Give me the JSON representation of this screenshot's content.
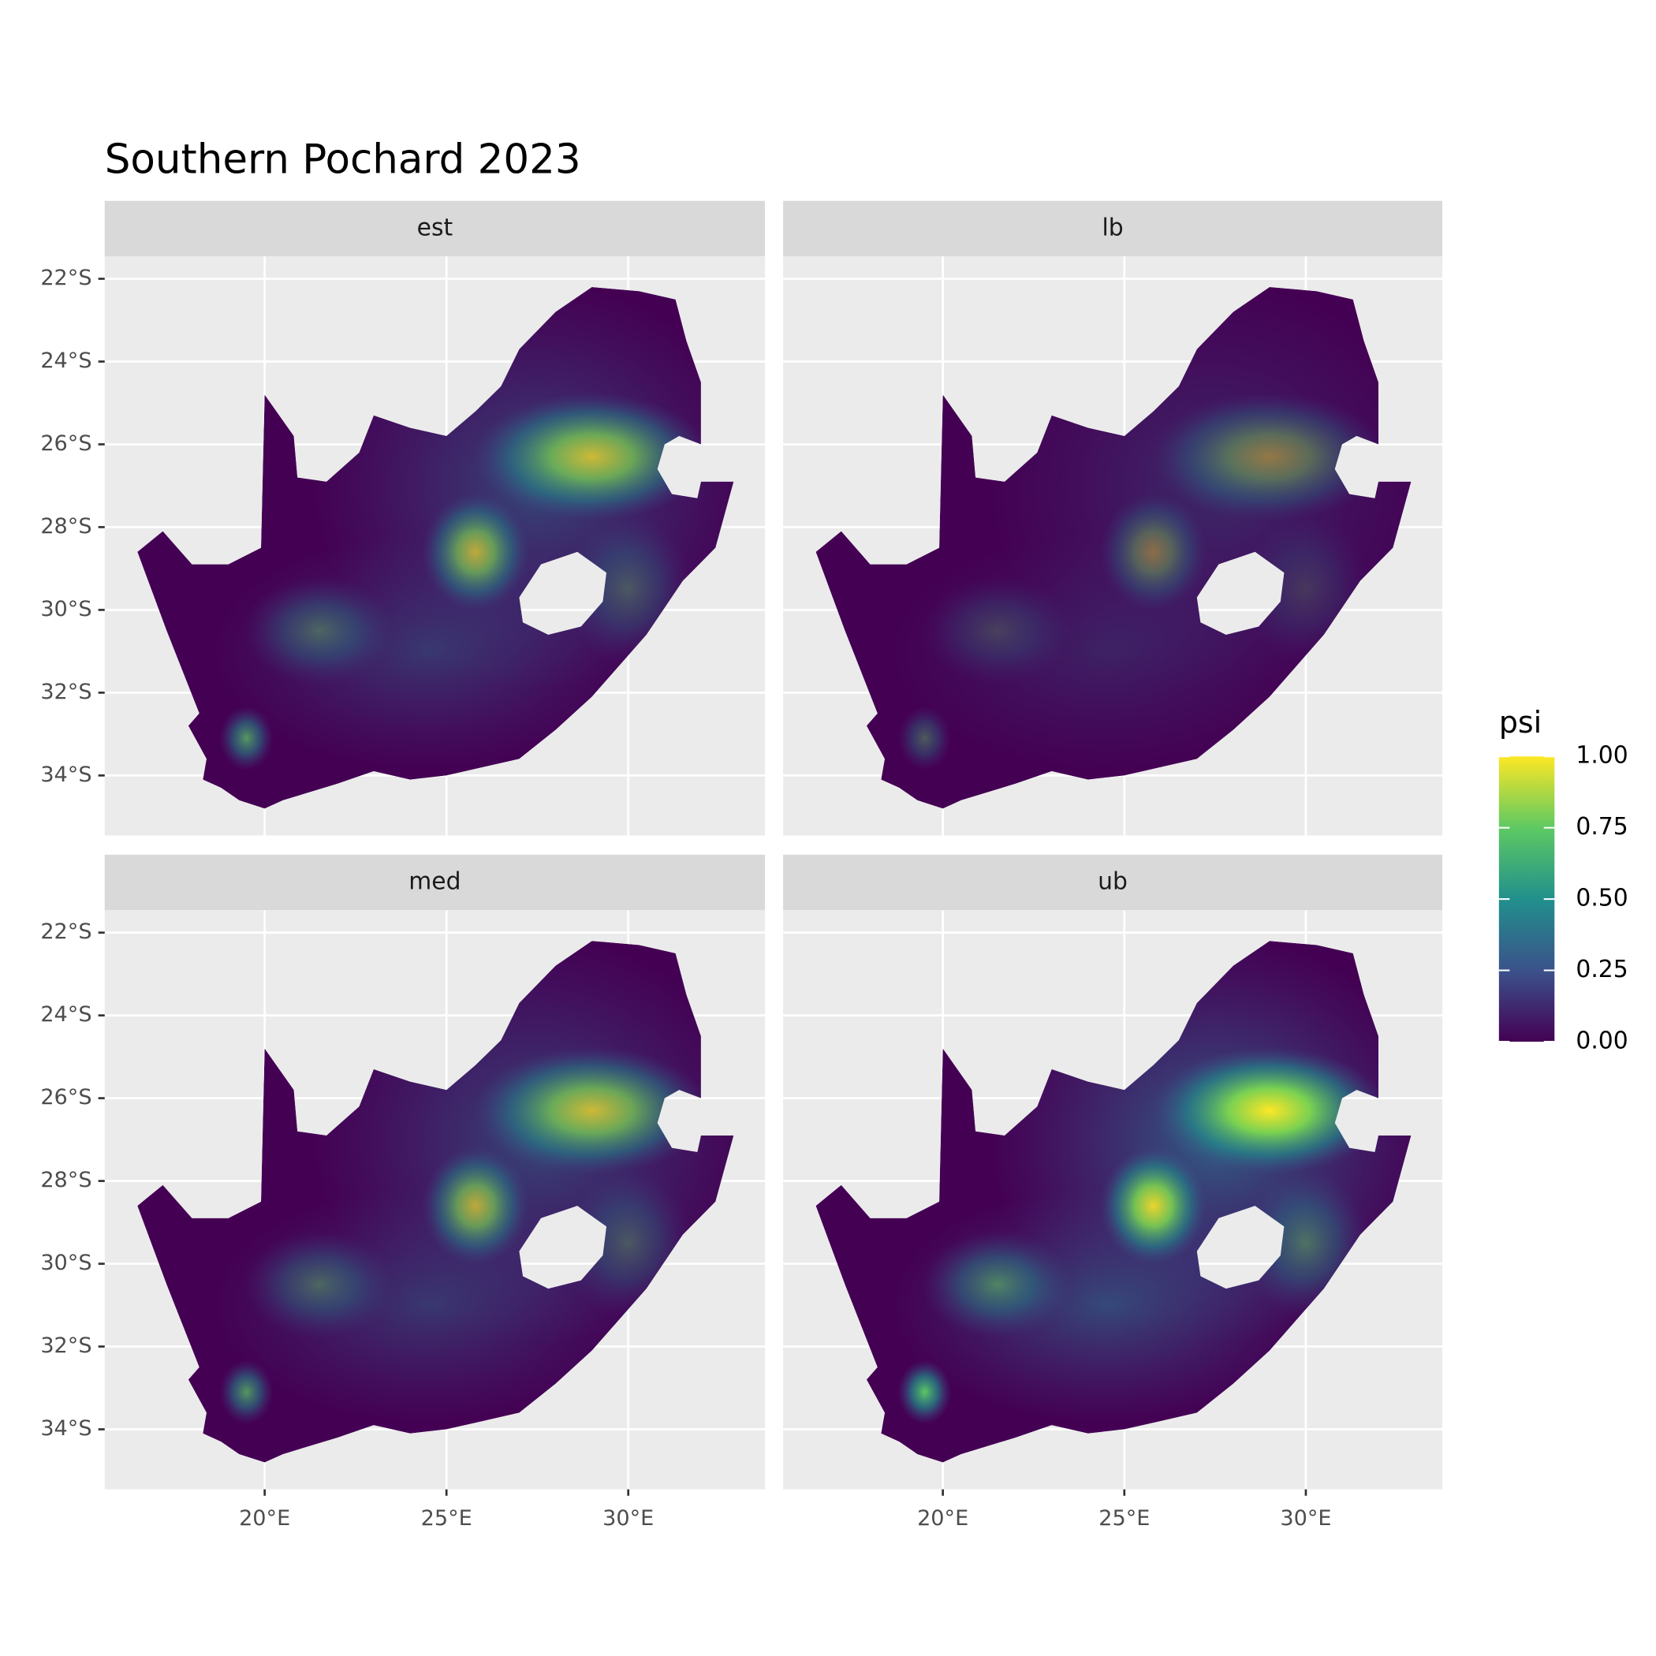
{
  "chart_data": {
    "type": "map",
    "title": "Southern Pochard 2023",
    "facets": [
      "est",
      "lb",
      "med",
      "ub"
    ],
    "xlim": [
      15.6,
      33.76
    ],
    "ylim": [
      -35.45,
      -21.46
    ],
    "xticks": [
      {
        "value": 20,
        "label": "20°E"
      },
      {
        "value": 25,
        "label": "25°E"
      },
      {
        "value": 30,
        "label": "30°E"
      }
    ],
    "yticks": [
      {
        "value": -22,
        "label": "22°S"
      },
      {
        "value": -24,
        "label": "24°S"
      },
      {
        "value": -26,
        "label": "26°S"
      },
      {
        "value": -28,
        "label": "28°S"
      },
      {
        "value": -30,
        "label": "30°S"
      },
      {
        "value": -32,
        "label": "32°S"
      },
      {
        "value": -34,
        "label": "34°S"
      }
    ],
    "grid": true,
    "legend": {
      "title": "psi",
      "position": "right",
      "colors": [
        "#440154",
        "#3b528b",
        "#21908c",
        "#5ec962",
        "#fde725"
      ],
      "lim": [
        0,
        1
      ],
      "ticks": [
        {
          "value": 0,
          "label": "0.00"
        },
        {
          "value": 0.25,
          "label": "0.25"
        },
        {
          "value": 0.5,
          "label": "0.50"
        },
        {
          "value": 0.75,
          "label": "0.75"
        },
        {
          "value": 1,
          "label": "1.00"
        }
      ]
    }
  }
}
